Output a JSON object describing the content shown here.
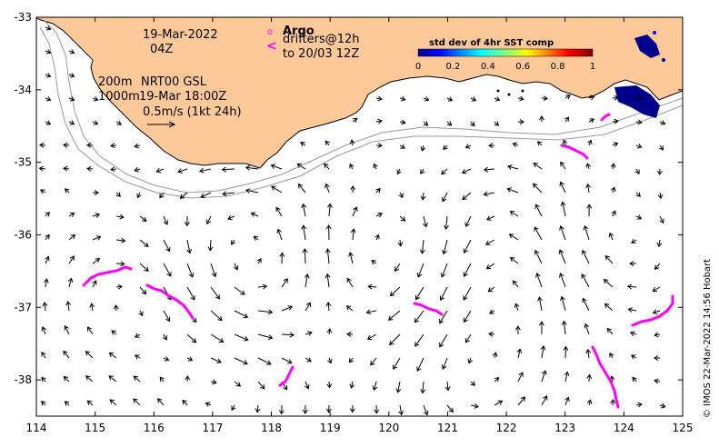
{
  "map": {
    "lon_ticks": [
      "114",
      "115",
      "116",
      "117",
      "118",
      "119",
      "120",
      "121",
      "122",
      "123",
      "124",
      "125"
    ],
    "lat_ticks": [
      "-33",
      "-34",
      "-35",
      "-36",
      "-37",
      "-38"
    ],
    "lon_range": [
      114,
      125
    ],
    "lat_range": [
      -38.5,
      -33
    ],
    "colors": {
      "land": "#fdc998",
      "arrow": "#000000",
      "drifter": "#ff00ff",
      "contour": "#999999",
      "sst_low": "#00008b"
    }
  },
  "annotations": {
    "date": "19-Mar-2022",
    "hour": "04Z",
    "depth_200": "200m",
    "model": "NRT00 GSL",
    "depth_1000": "1000m",
    "model_time": "19-Mar 18:00Z",
    "scale": "0.5m/s (1kt 24h)"
  },
  "legend": {
    "argo_symbol": "o",
    "argo_label": "Argo",
    "drifter_symbol": "<",
    "drifter_label1": "drifters@12h",
    "drifter_label2": "to 20/03 12Z"
  },
  "colorbar": {
    "title": "std dev of 4hr SST comp",
    "ticks": [
      "0",
      "0.2",
      "0.4",
      "0.6",
      "0.8",
      "1"
    ]
  },
  "credit": "© IMOS 22-Mar-2022 14:56 Hobart"
}
